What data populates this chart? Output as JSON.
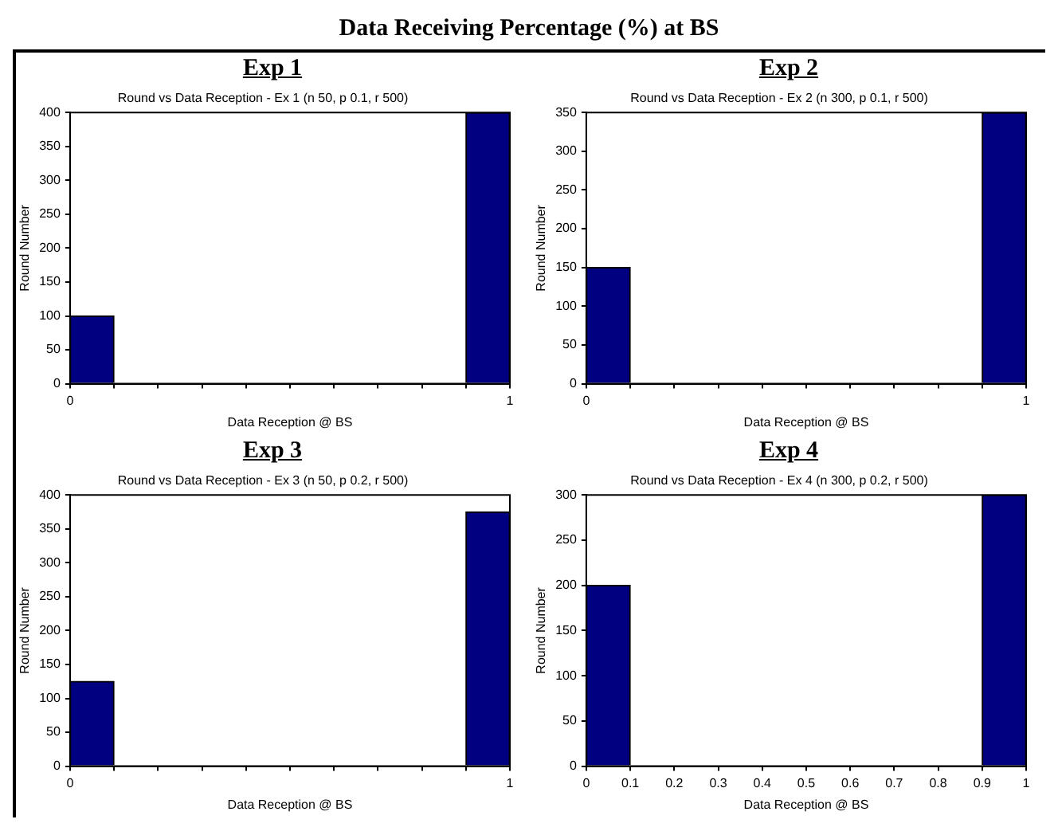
{
  "chart_data": [
    {
      "type": "histogram",
      "title": "Exp 1",
      "subtitle": "Round vs Data Reception - Ex 1 (n 50, p 0.1, r 500)",
      "xlabel": "Data Reception @ BS",
      "ylabel": "Round Number",
      "annotations": [
        "Data Receiving Percentage (%) at BS"
      ],
      "bins": [
        0,
        0.1,
        0.2,
        0.3,
        0.4,
        0.5,
        0.6,
        0.7,
        0.8,
        0.9,
        1
      ],
      "values": [
        100,
        0,
        0,
        0,
        0,
        0,
        0,
        0,
        0,
        400
      ],
      "color": "#000080",
      "xlim": [
        0,
        1
      ],
      "xticks": [
        0,
        {
          "value": 0.1,
          "label": null
        },
        {
          "value": 0.2,
          "label": null
        },
        {
          "value": 0.3,
          "label": null
        },
        {
          "value": 0.4,
          "label": null
        },
        {
          "value": 0.5,
          "label": null
        },
        {
          "value": 0.6,
          "label": null
        },
        {
          "value": 0.7,
          "label": null
        },
        {
          "value": 0.8,
          "label": null
        },
        {
          "value": 0.9,
          "label": null
        },
        1
      ],
      "ylim": [
        0,
        400
      ],
      "yticks": [
        0,
        50,
        100,
        150,
        200,
        250,
        300,
        350,
        400
      ],
      "grid": false,
      "legend": false
    },
    {
      "type": "histogram",
      "title": "Exp 2",
      "subtitle": "Round vs Data Reception - Ex 2 (n 300, p 0.1, r 500)",
      "xlabel": "Data Reception @ BS",
      "ylabel": "Round Number",
      "bins": [
        0,
        0.1,
        0.2,
        0.3,
        0.4,
        0.5,
        0.6,
        0.7,
        0.8,
        0.9,
        1
      ],
      "values": [
        150,
        0,
        0,
        0,
        0,
        0,
        0,
        0,
        0,
        350
      ],
      "color": "#000080",
      "xlim": [
        0,
        1
      ],
      "xticks": [
        0,
        {
          "value": 0.1,
          "label": null
        },
        {
          "value": 0.2,
          "label": null
        },
        {
          "value": 0.3,
          "label": null
        },
        {
          "value": 0.4,
          "label": null
        },
        {
          "value": 0.5,
          "label": null
        },
        {
          "value": 0.6,
          "label": null
        },
        {
          "value": 0.7,
          "label": null
        },
        {
          "value": 0.8,
          "label": null
        },
        {
          "value": 0.9,
          "label": null
        },
        1
      ],
      "ylim": [
        0,
        350
      ],
      "yticks": [
        0,
        50,
        100,
        150,
        200,
        250,
        300,
        350
      ],
      "grid": false,
      "legend": false
    },
    {
      "type": "histogram",
      "title": "Exp 3",
      "subtitle": "Round vs Data Reception - Ex 3 (n 50, p 0.2, r 500)",
      "xlabel": "Data Reception @ BS",
      "ylabel": "Round Number",
      "bins": [
        0,
        0.1,
        0.2,
        0.3,
        0.4,
        0.5,
        0.6,
        0.7,
        0.8,
        0.9,
        1
      ],
      "values": [
        125,
        0,
        0,
        0,
        0,
        0,
        0,
        0,
        0,
        375
      ],
      "color": "#000080",
      "xlim": [
        0,
        1
      ],
      "xticks": [
        0,
        {
          "value": 0.1,
          "label": null
        },
        {
          "value": 0.2,
          "label": null
        },
        {
          "value": 0.3,
          "label": null
        },
        {
          "value": 0.4,
          "label": null
        },
        {
          "value": 0.5,
          "label": null
        },
        {
          "value": 0.6,
          "label": null
        },
        {
          "value": 0.7,
          "label": null
        },
        {
          "value": 0.8,
          "label": null
        },
        {
          "value": 0.9,
          "label": null
        },
        1
      ],
      "ylim": [
        0,
        400
      ],
      "yticks": [
        0,
        50,
        100,
        150,
        200,
        250,
        300,
        350,
        400
      ],
      "grid": false,
      "legend": false
    },
    {
      "type": "histogram",
      "title": "Exp 4",
      "subtitle": "Round vs Data Reception - Ex 4 (n 300, p 0.2, r 500)",
      "xlabel": "Data Reception @ BS",
      "ylabel": "Round Number",
      "bins": [
        0,
        0.1,
        0.2,
        0.3,
        0.4,
        0.5,
        0.6,
        0.7,
        0.8,
        0.9,
        1
      ],
      "values": [
        200,
        0,
        0,
        0,
        0,
        0,
        0,
        0,
        0,
        300
      ],
      "color": "#000080",
      "xlim": [
        0,
        1
      ],
      "xticks": [
        0,
        0.1,
        0.2,
        0.3,
        0.4,
        0.5,
        0.6,
        0.7,
        0.8,
        0.9,
        1
      ],
      "ylim": [
        0,
        300
      ],
      "yticks": [
        0,
        50,
        100,
        150,
        200,
        250,
        300
      ],
      "grid": false,
      "legend": false
    }
  ]
}
